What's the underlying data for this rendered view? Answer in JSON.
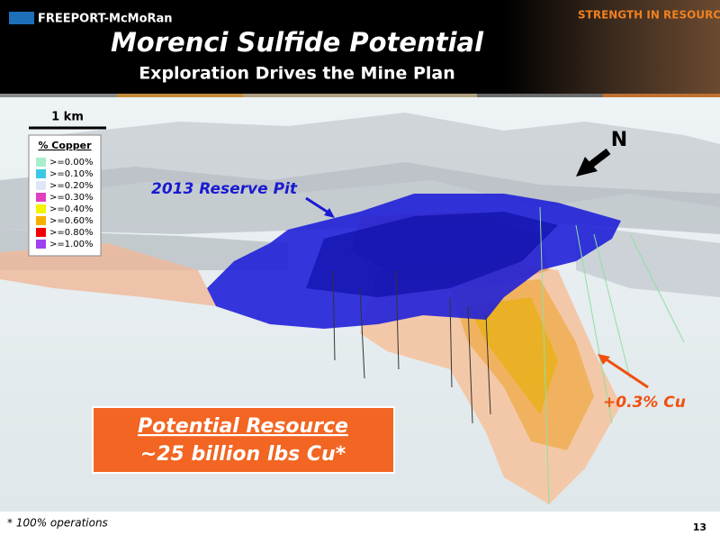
{
  "header": {
    "logo": "FREEPORT-McMoRan",
    "tagline": "STRENGTH IN RESOURCES",
    "title": "Morenci Sulfide Potential",
    "subtitle": "Exploration Drives the Mine Plan"
  },
  "scale_bar": "1 km",
  "legend": {
    "title": "% Copper",
    "items": [
      {
        "label": ">=0.00%",
        "color": "#a8f0cc"
      },
      {
        "label": ">=0.10%",
        "color": "#3cc8e4"
      },
      {
        "label": ">=0.20%",
        "color": "#dfe6f8"
      },
      {
        "label": ">=0.30%",
        "color": "#e040c0"
      },
      {
        "label": ">=0.40%",
        "color": "#f4f400"
      },
      {
        "label": ">=0.60%",
        "color": "#f8b000"
      },
      {
        "label": ">=0.80%",
        "color": "#f00000"
      },
      {
        "label": ">=1.00%",
        "color": "#a040f0"
      }
    ]
  },
  "annotations": {
    "pit": "2013 Reserve Pit",
    "north": "N",
    "grade": "+0.3% Cu"
  },
  "callout": {
    "line1": "Potential Resource",
    "line2": "~25 billion lbs Cu*"
  },
  "footnote": "* 100% operations",
  "page_number": "13"
}
